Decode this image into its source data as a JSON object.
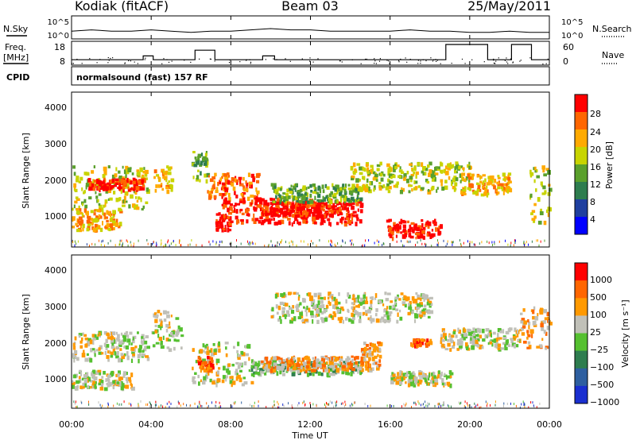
{
  "header": {
    "station": "Kodiak (fitACF)",
    "beam": "Beam 03",
    "date": "25/May/2011"
  },
  "top_panels": {
    "nsky_label": "N.Sky",
    "nsearch_label": "N.Search",
    "nsky_ticks": [
      "10^5",
      "10^0"
    ],
    "nsearch_ticks": [
      "10^5",
      "10^0"
    ],
    "freq_label_1": "Freq.",
    "freq_label_2": "[MHz]",
    "freq_ticks": [
      "18",
      "8"
    ],
    "nave_label": "Nave",
    "nave_ticks": [
      "60",
      "0"
    ],
    "cpid_label": "CPID",
    "cpid_text": "normalsound (fast) 157 RF"
  },
  "colors": {
    "power": [
      "#0000ff",
      "#1f3f9f",
      "#2e7d4f",
      "#5aa02c",
      "#c8d400",
      "#ffaa00",
      "#ff6600",
      "#ff0000"
    ],
    "velocity": [
      "#1a2fd0",
      "#2e5fa0",
      "#2e7d4f",
      "#55c030",
      "#c0c0b8",
      "#ff9900",
      "#ff6600",
      "#ff0000"
    ]
  },
  "chart_data": [
    {
      "type": "line",
      "name": "n-sky-search",
      "x": [
        0,
        1,
        2,
        3,
        4,
        5,
        6,
        7,
        8,
        9,
        10,
        11,
        12,
        13,
        14,
        15,
        16,
        17,
        18,
        19,
        20,
        21,
        22,
        23,
        24
      ],
      "series": [
        {
          "values": [
            3,
            4,
            3,
            3,
            4,
            3,
            2,
            3,
            3,
            4,
            5,
            4,
            4,
            3,
            3,
            3,
            3,
            4,
            3,
            3,
            2,
            2,
            3,
            2,
            2
          ]
        }
      ],
      "xlim": [
        0,
        24
      ]
    },
    {
      "type": "line",
      "name": "freq-nave",
      "x": [
        0,
        3.6,
        3.6,
        4.1,
        4.1,
        6.2,
        6.2,
        7.2,
        7.2,
        9.6,
        9.6,
        10.2,
        10.2,
        18.8,
        18.8,
        20.9,
        20.9,
        22.1,
        22.1,
        23.1,
        23.1,
        24
      ],
      "series": [
        {
          "values": [
            10,
            10,
            12,
            12,
            10,
            10,
            15,
            15,
            10,
            10,
            12,
            12,
            10,
            10,
            18,
            18,
            10,
            10,
            18,
            18,
            10,
            10
          ]
        }
      ],
      "xlim": [
        0,
        24
      ],
      "ylim": [
        8,
        18
      ]
    },
    {
      "type": "heatmap",
      "name": "power",
      "xlabel": "",
      "ylabel": "Slant Range [km]",
      "xlim": [
        0,
        24
      ],
      "ylim": [
        180,
        4500
      ],
      "yticks": [
        "4000",
        "3000",
        "2000",
        "1000"
      ],
      "colorbar_label": "Power [dB]",
      "colorbar_ticks": [
        "28",
        "24",
        "20",
        "16",
        "12",
        "8",
        "4"
      ],
      "features": [
        {
          "t": [
            0.0,
            3.8
          ],
          "r": [
            1200,
            2400
          ],
          "level": 4
        },
        {
          "t": [
            0.8,
            3.6
          ],
          "r": [
            1750,
            2050
          ],
          "level": 7
        },
        {
          "t": [
            0.0,
            2.5
          ],
          "r": [
            600,
            1200
          ],
          "level": 5
        },
        {
          "t": [
            4.1,
            5.0
          ],
          "r": [
            1700,
            2400
          ],
          "level": 5
        },
        {
          "t": [
            6.0,
            6.8
          ],
          "r": [
            2000,
            2800
          ],
          "level": 3
        },
        {
          "t": [
            6.8,
            9.4
          ],
          "r": [
            1500,
            2200
          ],
          "level": 6
        },
        {
          "t": [
            7.2,
            8.0
          ],
          "r": [
            600,
            1100
          ],
          "level": 7
        },
        {
          "t": [
            7.5,
            14.5
          ],
          "r": [
            800,
            1500
          ],
          "level": 7
        },
        {
          "t": [
            9.5,
            14.0
          ],
          "r": [
            1000,
            1400
          ],
          "level": 7
        },
        {
          "t": [
            10.0,
            14.5
          ],
          "r": [
            1400,
            1900
          ],
          "level": 3
        },
        {
          "t": [
            15.8,
            18.5
          ],
          "r": [
            400,
            900
          ],
          "level": 7
        },
        {
          "t": [
            14.0,
            20.0
          ],
          "r": [
            1700,
            2500
          ],
          "level": 4
        },
        {
          "t": [
            19.5,
            22.0
          ],
          "r": [
            1600,
            2200
          ],
          "level": 5
        },
        {
          "t": [
            23.0,
            24.0
          ],
          "r": [
            800,
            2400
          ],
          "level": 4
        }
      ]
    },
    {
      "type": "heatmap",
      "name": "velocity",
      "xlabel": "Time UT",
      "ylabel": "Slant Range [km]",
      "xlim": [
        0,
        24
      ],
      "ylim": [
        180,
        4500
      ],
      "yticks": [
        "4000",
        "3000",
        "2000",
        "1000"
      ],
      "xticks": [
        "00:00",
        "04:00",
        "08:00",
        "12:00",
        "16:00",
        "20:00",
        "00:00"
      ],
      "colorbar_label": "Velocity [m s⁻¹]",
      "colorbar_ticks": [
        "1000",
        "500",
        "100",
        "25",
        "−25",
        "−100",
        "−500",
        "−1000"
      ],
      "features": [
        {
          "t": [
            0.0,
            3.8
          ],
          "r": [
            1500,
            2300
          ],
          "level": 4
        },
        {
          "t": [
            0.0,
            3.0
          ],
          "r": [
            700,
            1200
          ],
          "level": 4
        },
        {
          "t": [
            4.0,
            5.5
          ],
          "r": [
            1800,
            2900
          ],
          "level": 4
        },
        {
          "t": [
            6.0,
            9.0
          ],
          "r": [
            800,
            2000
          ],
          "level": 4
        },
        {
          "t": [
            6.3,
            7.0
          ],
          "r": [
            1200,
            1600
          ],
          "level": 6
        },
        {
          "t": [
            9.0,
            14.5
          ],
          "r": [
            1100,
            1500
          ],
          "level": 3
        },
        {
          "t": [
            9.5,
            15.5
          ],
          "r": [
            1200,
            1600
          ],
          "level": 5
        },
        {
          "t": [
            14.5,
            15.5
          ],
          "r": [
            1600,
            2000
          ],
          "level": 5
        },
        {
          "t": [
            10.0,
            18.0
          ],
          "r": [
            2600,
            3400
          ],
          "level": 4
        },
        {
          "t": [
            16.0,
            19.0
          ],
          "r": [
            800,
            1200
          ],
          "level": 4
        },
        {
          "t": [
            17.0,
            18.0
          ],
          "r": [
            1900,
            2100
          ],
          "level": 6
        },
        {
          "t": [
            18.5,
            22.5
          ],
          "r": [
            1800,
            2400
          ],
          "level": 4
        },
        {
          "t": [
            22.5,
            24.0
          ],
          "r": [
            1800,
            3000
          ],
          "level": 5
        }
      ]
    }
  ]
}
